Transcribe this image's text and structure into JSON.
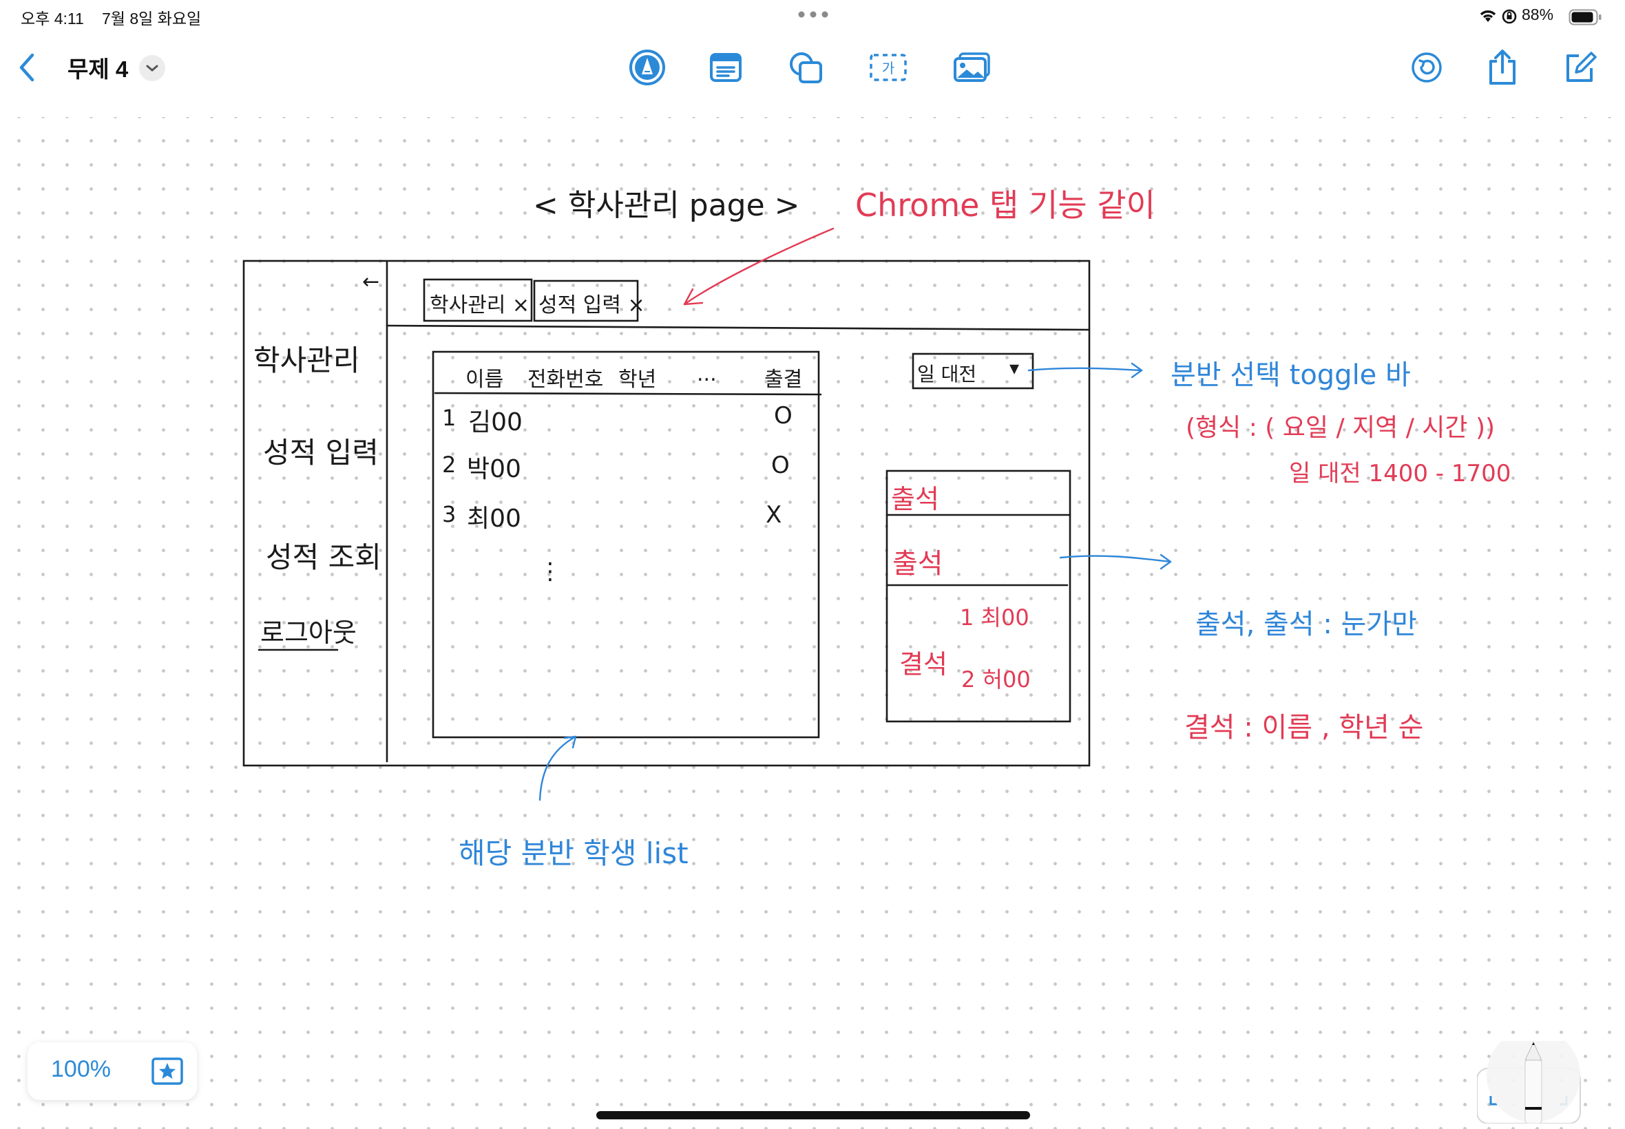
{
  "status_bar": {
    "time": "오후 4:11",
    "date": "7월 8일 화요일",
    "battery": "88%",
    "icons": [
      "wifi-icon",
      "orientation-lock-icon",
      "battery-icon"
    ]
  },
  "toolbar": {
    "title": "무제 4",
    "tools": [
      "pen-tool-icon",
      "text-box-icon",
      "shapes-icon",
      "text-label-icon",
      "media-icon"
    ],
    "right_tools": [
      "undo-icon",
      "share-icon",
      "compose-icon"
    ]
  },
  "sketch": {
    "page_title": "< 학사관리   page >",
    "sidebar": [
      "학사관리",
      "성적 입력",
      "성적 조회",
      "로그아웃"
    ],
    "tabs": [
      "학사관리 ×",
      "성적 입력 ×"
    ],
    "collapse_arrow": "←",
    "table_header": [
      "이름",
      "전화번호",
      "학년",
      "...",
      "출결"
    ],
    "rows": [
      {
        "no": "1",
        "name": "김00",
        "mark": "O"
      },
      {
        "no": "2",
        "name": "박00",
        "mark": "O"
      },
      {
        "no": "3",
        "name": "최00",
        "mark": "X"
      }
    ],
    "ellipsis": "⋮",
    "toggle_label": "일 대전",
    "toggle_arrow": "▾",
    "status_panel": {
      "present": "출석",
      "late": "출석",
      "absent": "결석",
      "absent_list": [
        "1 최00",
        "2 허00"
      ]
    }
  },
  "annotations": {
    "chrome_tab": "Chrome 탭 기능 같이",
    "toggle_bar": "분반 선택 toggle 바",
    "toggle_format": "(형식 : ( 요일 / 지역 / 시간 ))",
    "toggle_example": "일 대전 1400 - 1700",
    "students_list": "해당 분반 학생 list",
    "present_note": "출석, 출석 : 눈가만",
    "absent_note": "결석 :   이름 , 학년 순"
  },
  "zoom": {
    "level": "100%"
  },
  "colors": {
    "accent": "#2b8ad8",
    "ink_red": "#e23b55",
    "ink_blue": "#2f86d9",
    "ink_black": "#1b1b1b"
  }
}
